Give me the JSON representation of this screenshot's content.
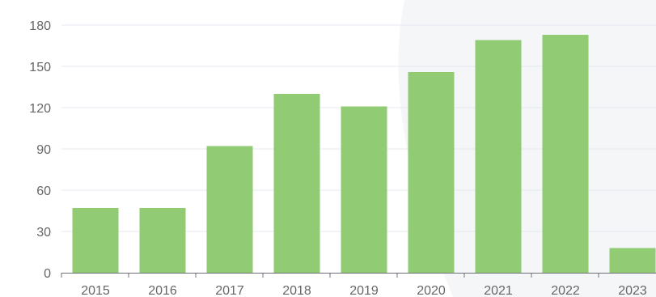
{
  "colors": {
    "bar": "#91cb74",
    "background_decor": "#f4f6f8"
  },
  "chart_data": {
    "type": "bar",
    "categories": [
      "2015",
      "2016",
      "2017",
      "2018",
      "2019",
      "2020",
      "2021",
      "2022",
      "2023"
    ],
    "values": [
      47,
      47,
      92,
      130,
      121,
      146,
      169,
      173,
      18
    ],
    "y_ticks": [
      "0",
      "30",
      "60",
      "90",
      "120",
      "150",
      "180"
    ],
    "ylim": [
      0,
      180
    ],
    "grid": true,
    "legend": "none"
  }
}
